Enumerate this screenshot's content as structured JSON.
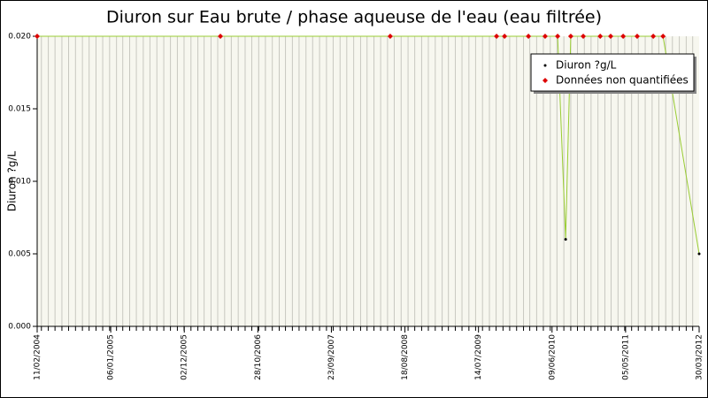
{
  "chart_data": {
    "type": "line",
    "title": "Diuron sur Eau brute / phase aqueuse de l'eau (eau filtrée)",
    "y_label": "Diuron ?g/L",
    "x": [
      "2004-02-11",
      "2006-05-13",
      "2008-06-13",
      "2009-10-03",
      "2009-11-08",
      "2010-02-23",
      "2010-05-09",
      "2010-07-04",
      "2010-08-09",
      "2010-09-01",
      "2010-10-27",
      "2011-01-11",
      "2011-02-27",
      "2011-04-24",
      "2011-06-26",
      "2011-09-06",
      "2011-10-20",
      "2012-03-30"
    ],
    "series": [
      {
        "name": "Diuron ?g/L",
        "color": "#000000",
        "line_color": "#99cc33",
        "values": [
          0.02,
          0.02,
          0.02,
          0.02,
          0.02,
          0.02,
          0.02,
          0.02,
          0.006,
          0.02,
          0.02,
          0.02,
          0.02,
          0.02,
          0.02,
          0.02,
          0.02,
          0.005
        ]
      },
      {
        "name": "Données non quantifiées",
        "color": "#dd0000",
        "values": [
          0.02,
          0.02,
          0.02,
          0.02,
          0.02,
          0.02,
          0.02,
          0.02,
          null,
          0.02,
          0.02,
          0.02,
          0.02,
          0.02,
          0.02,
          0.02,
          0.02,
          null
        ]
      }
    ],
    "xlim": [
      "2004-02-11",
      "2012-03-30"
    ],
    "xticks": [
      {
        "value": "2004-02-11",
        "label": "11/02/2004"
      },
      {
        "value": "2005-01-06",
        "label": "06/01/2005"
      },
      {
        "value": "2005-12-02",
        "label": "02/12/2005"
      },
      {
        "value": "2006-10-28",
        "label": "28/10/2006"
      },
      {
        "value": "2007-09-23",
        "label": "23/09/2007"
      },
      {
        "value": "2008-08-18",
        "label": "18/08/2008"
      },
      {
        "value": "2009-07-14",
        "label": "14/07/2009"
      },
      {
        "value": "2010-06-09",
        "label": "09/06/2010"
      },
      {
        "value": "2011-05-05",
        "label": "05/05/2011"
      },
      {
        "value": "2012-03-30",
        "label": "30/03/2012"
      }
    ],
    "ylim": [
      0,
      0.02
    ],
    "yticks": [
      {
        "value": 0,
        "label": "0.000"
      },
      {
        "value": 0.005,
        "label": "0.005"
      },
      {
        "value": 0.01,
        "label": "0.010"
      },
      {
        "value": 0.015,
        "label": "0.015"
      },
      {
        "value": 0.02,
        "label": "0.020"
      }
    ],
    "legend": "top-right"
  }
}
